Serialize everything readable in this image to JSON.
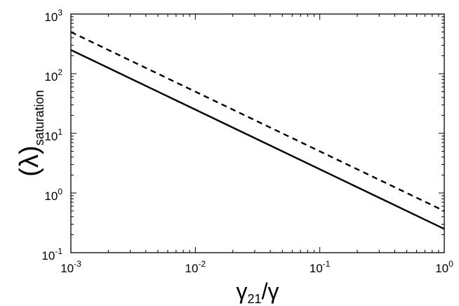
{
  "chart_data": {
    "type": "line",
    "x_scale": "log",
    "y_scale": "log",
    "xlim": [
      0.001,
      1
    ],
    "ylim": [
      0.1,
      1000
    ],
    "xlabel": {
      "main": "γ",
      "sub": "21",
      "tail": "/γ"
    },
    "ylabel": {
      "main": "(λ)",
      "sub": "saturation"
    },
    "x_ticks": [
      {
        "value": 0.001,
        "base": "10",
        "exp": "-3"
      },
      {
        "value": 0.01,
        "base": "10",
        "exp": "-2"
      },
      {
        "value": 0.1,
        "base": "10",
        "exp": "-1"
      },
      {
        "value": 1,
        "base": "10",
        "exp": "0"
      }
    ],
    "y_ticks": [
      {
        "value": 0.1,
        "base": "10",
        "exp": "-1"
      },
      {
        "value": 1,
        "base": "10",
        "exp": "0"
      },
      {
        "value": 10,
        "base": "10",
        "exp": "1"
      },
      {
        "value": 100,
        "base": "10",
        "exp": "2"
      },
      {
        "value": 1000,
        "base": "10",
        "exp": "3"
      }
    ],
    "series": [
      {
        "style": "dashed",
        "color": "#000000",
        "x": [
          0.001,
          1
        ],
        "y": [
          500,
          0.5
        ]
      },
      {
        "style": "solid",
        "color": "#000000",
        "x": [
          0.001,
          1
        ],
        "y": [
          250,
          0.25
        ]
      }
    ],
    "grid": false,
    "legend": "none"
  }
}
